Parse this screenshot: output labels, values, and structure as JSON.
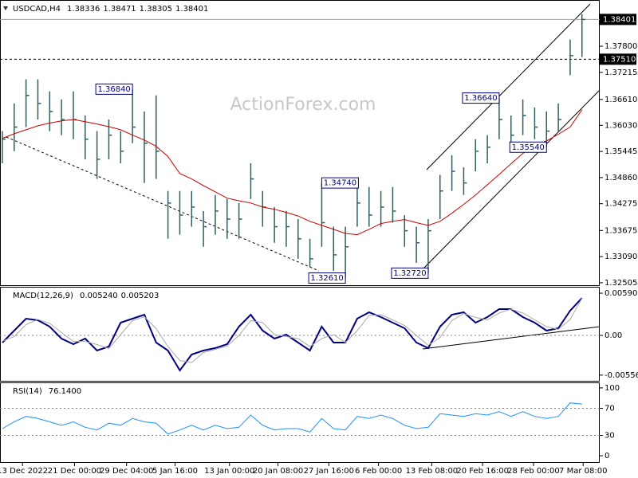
{
  "chart_data": [
    {
      "type": "ohlc",
      "title": "USDCAD,H4",
      "last_bar": [
        1.38336,
        1.38471,
        1.38305,
        1.38401
      ],
      "watermark": "ActionForex.com",
      "color": "#2f5f5f",
      "high": [
        1.359,
        1.3652,
        1.3706,
        1.3706,
        1.3679,
        1.3661,
        1.3679,
        1.3625,
        1.359,
        1.3616,
        1.359,
        1.3684,
        1.3634,
        1.367,
        1.3456,
        1.3456,
        1.3456,
        1.3411,
        1.3447,
        1.3438,
        1.3429,
        1.3518,
        1.3456,
        1.342,
        1.3411,
        1.3393,
        1.3349,
        1.3474,
        1.3376,
        1.3376,
        1.3465,
        1.3465,
        1.3456,
        1.3465,
        1.3402,
        1.3376,
        1.3393,
        1.3492,
        1.3536,
        1.3509,
        1.3572,
        1.3581,
        1.3664,
        1.3625,
        1.3661,
        1.3643,
        1.3634,
        1.3652,
        1.3795,
        1.3852
      ],
      "low": [
        1.3518,
        1.3545,
        1.3599,
        1.3616,
        1.359,
        1.3581,
        1.3572,
        1.3527,
        1.3483,
        1.3527,
        1.3518,
        1.3563,
        1.3474,
        1.3483,
        1.3349,
        1.3358,
        1.3376,
        1.3331,
        1.3358,
        1.3349,
        1.3349,
        1.3438,
        1.3376,
        1.334,
        1.3331,
        1.3304,
        1.3286,
        1.3331,
        1.3277,
        1.3261,
        1.3376,
        1.3376,
        1.3376,
        1.3385,
        1.3331,
        1.3295,
        1.3272,
        1.3393,
        1.3456,
        1.3447,
        1.35,
        1.3518,
        1.3572,
        1.3554,
        1.3581,
        1.3572,
        1.3554,
        1.359,
        1.3715,
        1.3756
      ],
      "close": [
        1.3572,
        1.3599,
        1.367,
        1.3652,
        1.3634,
        1.3616,
        1.3616,
        1.3572,
        1.3527,
        1.3581,
        1.3545,
        1.3599,
        1.3563,
        1.3545,
        1.3429,
        1.3402,
        1.342,
        1.3376,
        1.3411,
        1.3393,
        1.3393,
        1.3483,
        1.342,
        1.3376,
        1.3376,
        1.3349,
        1.3304,
        1.3385,
        1.3313,
        1.3331,
        1.3429,
        1.3402,
        1.342,
        1.3411,
        1.3367,
        1.334,
        1.3367,
        1.3456,
        1.35,
        1.3474,
        1.3545,
        1.3554,
        1.3616,
        1.3581,
        1.3625,
        1.3599,
        1.359,
        1.3616,
        1.3759,
        1.384
      ],
      "ma": {
        "color": "#cc0000",
        "values": [
          1.3574,
          1.3584,
          1.3593,
          1.3602,
          1.3608,
          1.3613,
          1.3616,
          1.3611,
          1.3606,
          1.36,
          1.3593,
          1.3581,
          1.357,
          1.3556,
          1.3533,
          1.3495,
          1.3483,
          1.3468,
          1.3454,
          1.344,
          1.3434,
          1.3429,
          1.342,
          1.3415,
          1.3408,
          1.34,
          1.3388,
          1.3379,
          1.337,
          1.3361,
          1.3358,
          1.337,
          1.3383,
          1.3388,
          1.3392,
          1.3385,
          1.3379,
          1.3388,
          1.3406,
          1.3426,
          1.3447,
          1.347,
          1.3493,
          1.3517,
          1.354,
          1.3558,
          1.3568,
          1.3583,
          1.3599,
          1.3638
        ]
      },
      "annotations": [
        {
          "x": 11,
          "value": 1.3684,
          "label": "1.36840"
        },
        {
          "x": 27,
          "value": 1.3474,
          "label": "1.34740"
        },
        {
          "x": 29,
          "value": 1.3261,
          "label": "1.32610"
        },
        {
          "x": 36,
          "value": 1.3272,
          "label": "1.32720"
        },
        {
          "x": 42,
          "value": 1.3664,
          "label": "1.36640"
        },
        {
          "x": 46,
          "value": 1.3554,
          "label": "1.35540"
        }
      ],
      "current_price": 1.38401,
      "level": {
        "value": 1.3751,
        "label": "1.37510"
      },
      "ylim": [
        1.3245,
        1.388
      ],
      "yticks": [
        {
          "value": 1.378,
          "label": "1.37800"
        },
        1.37215,
        {
          "value": 1.3661,
          "label": "1.36610"
        },
        {
          "value": 1.3603,
          "label": "1.36030"
        },
        1.35445,
        {
          "value": 1.3486,
          "label": "1.34860"
        },
        1.34275,
        1.33675,
        {
          "value": 1.3309,
          "label": "1.33090"
        },
        1.32505
      ],
      "xlim": [
        -0.2,
        50.5
      ],
      "xticks": [
        {
          "value": 1.7,
          "label": "13 Dec 2022"
        },
        {
          "value": 6.1,
          "label": "21 Dec 00:00"
        },
        {
          "value": 10.5,
          "label": "29 Dec 04:00"
        },
        {
          "value": 14.6,
          "label": "5 Jan 16:00"
        },
        {
          "value": 19.2,
          "label": "13 Jan 00:00"
        },
        {
          "value": 23.3,
          "label": "20 Jan 08:00"
        },
        {
          "value": 27.6,
          "label": "27 Jan 16:00"
        },
        {
          "value": 31.8,
          "label": "6 Feb 00:00"
        },
        {
          "value": 36.3,
          "label": "13 Feb 08:00"
        },
        {
          "value": 40.6,
          "label": "20 Feb 16:00"
        },
        {
          "value": 44.9,
          "label": "28 Feb 00:00"
        },
        {
          "value": 49.1,
          "label": "7 Mar 08:00"
        }
      ]
    },
    {
      "type": "line",
      "title": "MACD(12,26,9)",
      "header_values": [
        {
          "value": 0.00524,
          "label": "0.005240"
        },
        0.005203
      ],
      "series": [
        {
          "color": "#000080",
          "width": 2,
          "values": [
            -0.001,
            0.00067,
            0.00234,
            0.00212,
            0.00123,
            -0.00045,
            -0.00123,
            -0.00045,
            -0.00212,
            -0.00156,
            0.00178,
            0.00234,
            0.0029,
            -0.001,
            -0.00212,
            -0.00491,
            -0.00268,
            -0.00212,
            -0.00178,
            -0.00123,
            0.00123,
            0.0029,
            0.00067,
            -0.00045,
            0.00011,
            -0.001,
            -0.00212,
            0.00123,
            -0.001,
            -0.001,
            0.00234,
            0.00323,
            0.00256,
            0.00178,
            0.001,
            -0.001,
            -0.00178,
            0.00123,
            0.0029,
            0.00323,
            0.00178,
            0.00256,
            0.00368,
            0.00368,
            0.00256,
            0.00178,
            0.00067,
            0.001,
            0.00346,
            0.00524
          ]
        },
        {
          "color": "#a9a9a9",
          "width": 1,
          "values": [
            -0.0008,
            -0.00017,
            0.0015,
            0.00223,
            0.00168,
            0.00039,
            -0.00084,
            -0.00084,
            -0.00128,
            -0.00184,
            0.00011,
            0.00206,
            0.00262,
            0.00095,
            -0.00156,
            -0.00352,
            -0.0038,
            -0.0024,
            -0.00195,
            -0.0015,
            0.0,
            0.00207,
            0.00179,
            0.00011,
            -0.00017,
            -0.00045,
            -0.00156,
            -0.00045,
            0.00012,
            -0.001,
            0.00067,
            0.00279,
            0.0029,
            0.00217,
            0.00139,
            0.0,
            -0.00139,
            -0.00028,
            0.00207,
            0.00307,
            0.00251,
            0.00217,
            0.00312,
            0.00368,
            0.00312,
            0.00217,
            0.00123,
            0.00084,
            0.00223,
            0.005203
          ]
        }
      ],
      "levels": [
        0
      ],
      "ylim": [
        -0.00636,
        0.00658
      ],
      "yticks": [
        0.005908,
        {
          "value": 0,
          "label": "0.00"
        },
        -0.005563
      ]
    },
    {
      "type": "line",
      "title": "RSI(14)",
      "header_values": [
        {
          "value": 76.14,
          "label": "76.1400"
        }
      ],
      "series": [
        {
          "color": "#1e90ff",
          "width": 1,
          "values": [
            40,
            50,
            58,
            55,
            50,
            45,
            50,
            42,
            38,
            48,
            45,
            55,
            50,
            48,
            32,
            38,
            45,
            38,
            45,
            40,
            42,
            60,
            45,
            38,
            40,
            40,
            35,
            55,
            40,
            38,
            58,
            55,
            60,
            55,
            45,
            40,
            42,
            62,
            60,
            58,
            62,
            60,
            65,
            58,
            65,
            58,
            55,
            58,
            78,
            76.14
          ]
        }
      ],
      "levels": [
        70,
        30
      ],
      "ylim": [
        -9.3,
        105.8
      ],
      "yticks": [
        100,
        70,
        30,
        0
      ]
    }
  ]
}
